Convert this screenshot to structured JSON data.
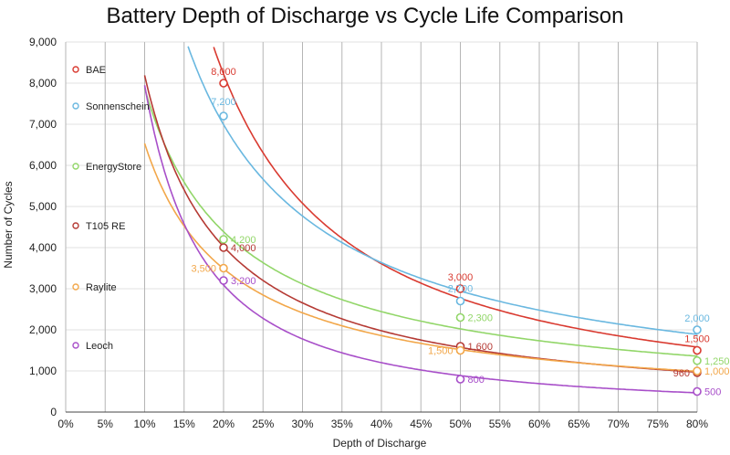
{
  "chart_data": {
    "type": "line",
    "title": "Battery Depth of Discharge vs Cycle Life Comparison",
    "xlabel": "Depth of Discharge",
    "ylabel": "Number of Cycles",
    "xlim": [
      0,
      80
    ],
    "ylim": [
      0,
      9000
    ],
    "x_ticks": [
      0,
      5,
      10,
      15,
      20,
      25,
      30,
      35,
      40,
      45,
      50,
      55,
      60,
      65,
      70,
      75,
      80
    ],
    "x_tick_labels": [
      "0%",
      "5%",
      "10%",
      "15%",
      "20%",
      "25%",
      "30%",
      "35%",
      "40%",
      "45%",
      "50%",
      "55%",
      "60%",
      "65%",
      "70%",
      "75%",
      "80%"
    ],
    "y_ticks": [
      0,
      1000,
      2000,
      3000,
      4000,
      5000,
      6000,
      7000,
      8000,
      9000
    ],
    "y_tick_labels": [
      "0",
      "1,000",
      "2,000",
      "3,000",
      "4,000",
      "5,000",
      "6,000",
      "7,000",
      "8,000",
      "9,000"
    ],
    "grid": true,
    "legend_position": "left-inside",
    "series": [
      {
        "name": "BAE",
        "color": "#d93a30",
        "points": [
          {
            "x": 20,
            "y": 8000,
            "label": "8,000"
          },
          {
            "x": 50,
            "y": 3000,
            "label": "3,000"
          },
          {
            "x": 80,
            "y": 1500,
            "label": "1,500"
          }
        ]
      },
      {
        "name": "Sonnenschein",
        "color": "#6ab8e0",
        "points": [
          {
            "x": 20,
            "y": 7200,
            "label": "7,200"
          },
          {
            "x": 50,
            "y": 2700,
            "label": "2,700"
          },
          {
            "x": 80,
            "y": 2000,
            "label": "2,000"
          }
        ]
      },
      {
        "name": "EnergyStore",
        "color": "#92d669",
        "points": [
          {
            "x": 20,
            "y": 4200,
            "label": "4,200"
          },
          {
            "x": 50,
            "y": 2300,
            "label": "2,300"
          },
          {
            "x": 80,
            "y": 1250,
            "label": "1,250"
          }
        ]
      },
      {
        "name": "T105 RE",
        "color": "#b53a34",
        "points": [
          {
            "x": 20,
            "y": 4000,
            "label": "4,000"
          },
          {
            "x": 50,
            "y": 1600,
            "label": "1,600"
          },
          {
            "x": 80,
            "y": 960,
            "label": "960"
          }
        ]
      },
      {
        "name": "Raylite",
        "color": "#f2a74a",
        "points": [
          {
            "x": 20,
            "y": 3500,
            "label": "3,500"
          },
          {
            "x": 50,
            "y": 1500,
            "label": "1,500"
          },
          {
            "x": 80,
            "y": 1000,
            "label": "1,000"
          }
        ]
      },
      {
        "name": "Leoch",
        "color": "#a84fc9",
        "points": [
          {
            "x": 20,
            "y": 3200,
            "label": "3,200"
          },
          {
            "x": 50,
            "y": 800,
            "label": "800"
          },
          {
            "x": 80,
            "y": 500,
            "label": "500"
          }
        ]
      }
    ]
  }
}
